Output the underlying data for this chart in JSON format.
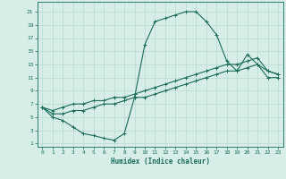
{
  "title": "",
  "xlabel": "Humidex (Indice chaleur)",
  "bg_color": "#d6ede8",
  "grid_color": "#b8d8d0",
  "line_color": "#1a6b5a",
  "xlim": [
    -0.5,
    23.5
  ],
  "ylim": [
    0.5,
    22.5
  ],
  "xticks": [
    0,
    1,
    2,
    3,
    4,
    5,
    6,
    7,
    8,
    9,
    10,
    11,
    12,
    13,
    14,
    15,
    16,
    17,
    18,
    19,
    20,
    21,
    22,
    23
  ],
  "yticks": [
    1,
    3,
    5,
    7,
    9,
    11,
    13,
    15,
    17,
    19,
    21
  ],
  "series1_x": [
    0,
    1,
    2,
    3,
    4,
    5,
    6,
    7,
    8,
    9,
    10,
    11,
    12,
    13,
    14,
    15,
    16,
    17,
    18,
    19,
    20,
    21,
    22,
    23
  ],
  "series1_y": [
    6.5,
    5,
    4.5,
    3.5,
    2.5,
    2.2,
    1.8,
    1.5,
    2.5,
    8,
    16,
    19.5,
    20,
    20.5,
    21,
    21,
    19.5,
    17.5,
    13.5,
    12,
    14.5,
    13,
    12,
    11.5
  ],
  "series2_x": [
    0,
    1,
    2,
    3,
    4,
    5,
    6,
    7,
    8,
    9,
    10,
    11,
    12,
    13,
    14,
    15,
    16,
    17,
    18,
    19,
    20,
    21,
    22,
    23
  ],
  "series2_y": [
    6.5,
    6,
    6.5,
    7,
    7,
    7.5,
    7.5,
    8,
    8,
    8.5,
    9,
    9.5,
    10,
    10.5,
    11,
    11.5,
    12,
    12.5,
    13,
    13,
    13.5,
    14,
    12,
    11.5
  ],
  "series3_x": [
    0,
    1,
    2,
    3,
    4,
    5,
    6,
    7,
    8,
    9,
    10,
    11,
    12,
    13,
    14,
    15,
    16,
    17,
    18,
    19,
    20,
    21,
    22,
    23
  ],
  "series3_y": [
    6.5,
    5.5,
    5.5,
    6,
    6,
    6.5,
    7,
    7,
    7.5,
    8,
    8,
    8.5,
    9,
    9.5,
    10,
    10.5,
    11,
    11.5,
    12,
    12,
    12.5,
    13,
    11,
    11
  ]
}
